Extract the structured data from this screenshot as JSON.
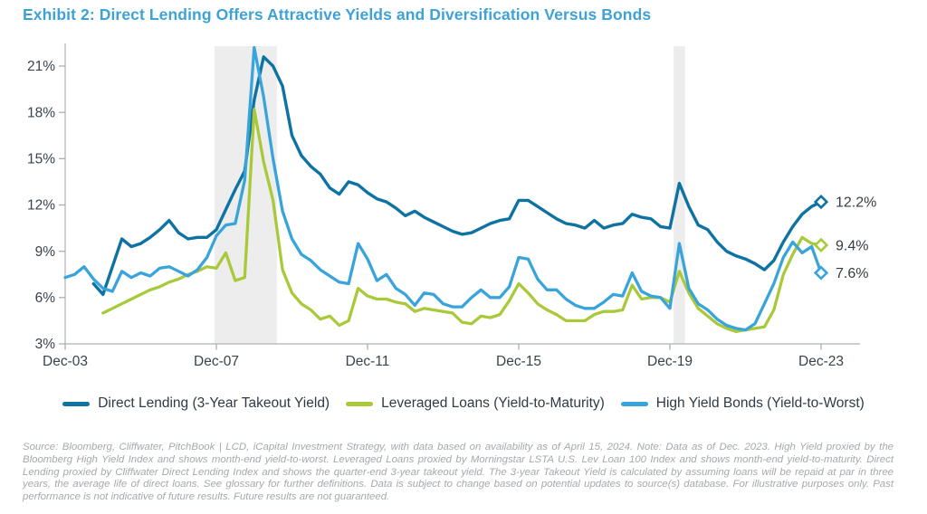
{
  "title": "Exhibit 2: Direct Lending Offers Attractive Yields and Diversification Versus Bonds",
  "title_color": "#3fa2d4",
  "source_note": "Source: Bloomberg, Cliffwater, PitchBook | LCD, iCapital Investment Strategy, with data based on availability as of April 15, 2024. Note: Data as of Dec. 2023. High Yield proxied by the Bloomberg High Yield Index and shows month-end yield-to-worst. Leveraged Loans proxied by Morningstar LSTA U.S. Lev Loan 100 Index and shows month-end yield-to-maturity. Direct Lending proxied by Cliffwater Direct Lending Index and shows the quarter-end 3-year takeout yield. The 3-year Takeout Yield is calculated by assuming loans will be repaid at par in three years, the average life of direct loans. See glossary for further definitions. Data is subject to change based on potential updates to source(s) database. For illustrative purposes only. Past performance is not indicative of future results. Future results are not guaranteed.",
  "chart_data": {
    "type": "line",
    "x_start": "Dec-03",
    "x_interval": "quarterly",
    "n_points": 81,
    "x_tick_labels": [
      "Dec-03",
      "Dec-07",
      "Dec-11",
      "Dec-15",
      "Dec-19",
      "Dec-23"
    ],
    "x_tick_indices": [
      0,
      16,
      32,
      48,
      64,
      80
    ],
    "y_ticks": [
      21,
      18,
      15,
      12,
      9,
      6,
      3
    ],
    "y_tick_suffix": "%",
    "ylim": [
      3,
      22.5
    ],
    "grid": false,
    "legend_position": "bottom",
    "band_color": "#ededed",
    "recession_bands": [
      {
        "start_index": 15.8,
        "end_index": 22.4
      },
      {
        "start_index": 64.4,
        "end_index": 65.6
      }
    ],
    "series": [
      {
        "name": "Direct Lending (3-Year Takeout Yield)",
        "color": "#0e73a2",
        "stroke_width": 3.4,
        "end_label": "12.2%",
        "values": [
          null,
          null,
          null,
          6.9,
          6.2,
          8.0,
          9.8,
          9.3,
          9.5,
          9.9,
          10.4,
          11.0,
          10.2,
          9.8,
          9.9,
          9.9,
          10.4,
          11.7,
          13.0,
          14.2,
          18.8,
          21.6,
          21.0,
          19.7,
          16.5,
          15.2,
          14.5,
          14.0,
          13.1,
          12.7,
          13.5,
          13.3,
          12.8,
          12.4,
          12.2,
          11.8,
          11.3,
          11.6,
          11.2,
          10.9,
          10.6,
          10.3,
          10.1,
          10.2,
          10.5,
          10.8,
          11.0,
          11.1,
          12.3,
          12.3,
          11.9,
          11.5,
          11.1,
          10.8,
          10.7,
          10.5,
          11.0,
          10.5,
          10.7,
          10.8,
          11.4,
          11.2,
          11.1,
          10.6,
          10.5,
          13.4,
          11.9,
          10.7,
          10.4,
          9.6,
          9.0,
          8.7,
          8.5,
          8.2,
          7.8,
          8.4,
          9.6,
          10.6,
          11.4,
          11.9,
          12.2
        ]
      },
      {
        "name": "Leveraged Loans (Yield-to-Maturity)",
        "color": "#a9c93a",
        "stroke_width": 3.3,
        "end_label": "9.4%",
        "values": [
          null,
          null,
          null,
          null,
          5.0,
          5.3,
          5.6,
          5.9,
          6.2,
          6.5,
          6.7,
          7.0,
          7.2,
          7.5,
          7.7,
          8.0,
          7.9,
          8.9,
          7.1,
          7.3,
          18.2,
          14.8,
          12.3,
          7.8,
          6.3,
          5.6,
          5.2,
          4.6,
          4.8,
          4.2,
          4.5,
          6.6,
          6.1,
          5.9,
          5.9,
          5.7,
          5.6,
          5.1,
          5.3,
          5.2,
          5.1,
          5.0,
          4.4,
          4.3,
          4.8,
          4.7,
          4.9,
          5.8,
          6.9,
          6.3,
          5.6,
          5.2,
          4.9,
          4.5,
          4.5,
          4.5,
          4.9,
          5.1,
          5.1,
          5.2,
          6.8,
          5.9,
          6.0,
          6.0,
          5.7,
          7.7,
          6.3,
          5.3,
          4.8,
          4.3,
          4.0,
          3.8,
          3.9,
          4.0,
          4.1,
          5.2,
          7.5,
          8.8,
          9.9,
          9.5,
          9.4
        ]
      },
      {
        "name": "High Yield Bonds (Yield-to-Worst)",
        "color": "#38a4db",
        "stroke_width": 3.3,
        "end_label": "7.6%",
        "values": [
          7.3,
          7.5,
          8.0,
          7.2,
          6.6,
          6.4,
          7.7,
          7.3,
          7.6,
          7.4,
          7.9,
          8.0,
          7.7,
          7.4,
          7.8,
          8.6,
          10.0,
          10.7,
          10.8,
          13.6,
          22.2,
          19.0,
          15.0,
          11.6,
          9.8,
          8.8,
          8.4,
          7.8,
          7.4,
          7.0,
          6.9,
          9.5,
          8.5,
          7.1,
          7.5,
          6.6,
          6.2,
          5.5,
          6.3,
          6.2,
          5.6,
          5.4,
          5.4,
          6.0,
          6.5,
          6.0,
          6.0,
          6.7,
          8.6,
          8.5,
          7.2,
          6.5,
          6.5,
          5.9,
          5.5,
          5.3,
          5.3,
          5.7,
          6.2,
          6.1,
          7.6,
          6.4,
          6.1,
          6.0,
          5.3,
          9.5,
          6.6,
          5.6,
          5.2,
          4.6,
          4.2,
          4.0,
          3.9,
          4.3,
          5.6,
          6.9,
          8.6,
          9.6,
          8.9,
          9.3,
          7.6
        ]
      }
    ]
  }
}
